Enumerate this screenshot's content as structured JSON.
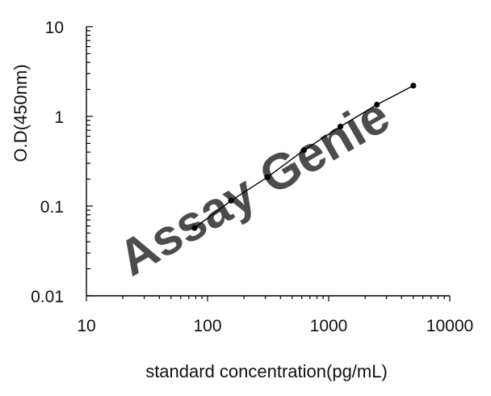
{
  "chart_data": {
    "type": "line",
    "xlabel": "standard concentration(pg/mL)",
    "ylabel": "O.D(450nm)",
    "xscale": "log",
    "yscale": "log",
    "xlim": [
      10,
      10000
    ],
    "ylim": [
      0.01,
      10
    ],
    "x_ticks": [
      "10",
      "100",
      "1000",
      "10000"
    ],
    "y_ticks": [
      "0.01",
      "0.1",
      "1",
      "10"
    ],
    "grid": false,
    "legend": "none",
    "series": [
      {
        "marker": "circle",
        "color": "#000000",
        "x": [
          78.125,
          156.25,
          312.5,
          625,
          1250,
          2500,
          5000
        ],
        "y": [
          0.057,
          0.115,
          0.21,
          0.42,
          0.77,
          1.35,
          2.2
        ]
      }
    ]
  },
  "watermark": {
    "text_assay": "Assay",
    "text_genie": "Genie",
    "color_assay": "#9ed3ea",
    "color_genie": "#aab4c0"
  }
}
